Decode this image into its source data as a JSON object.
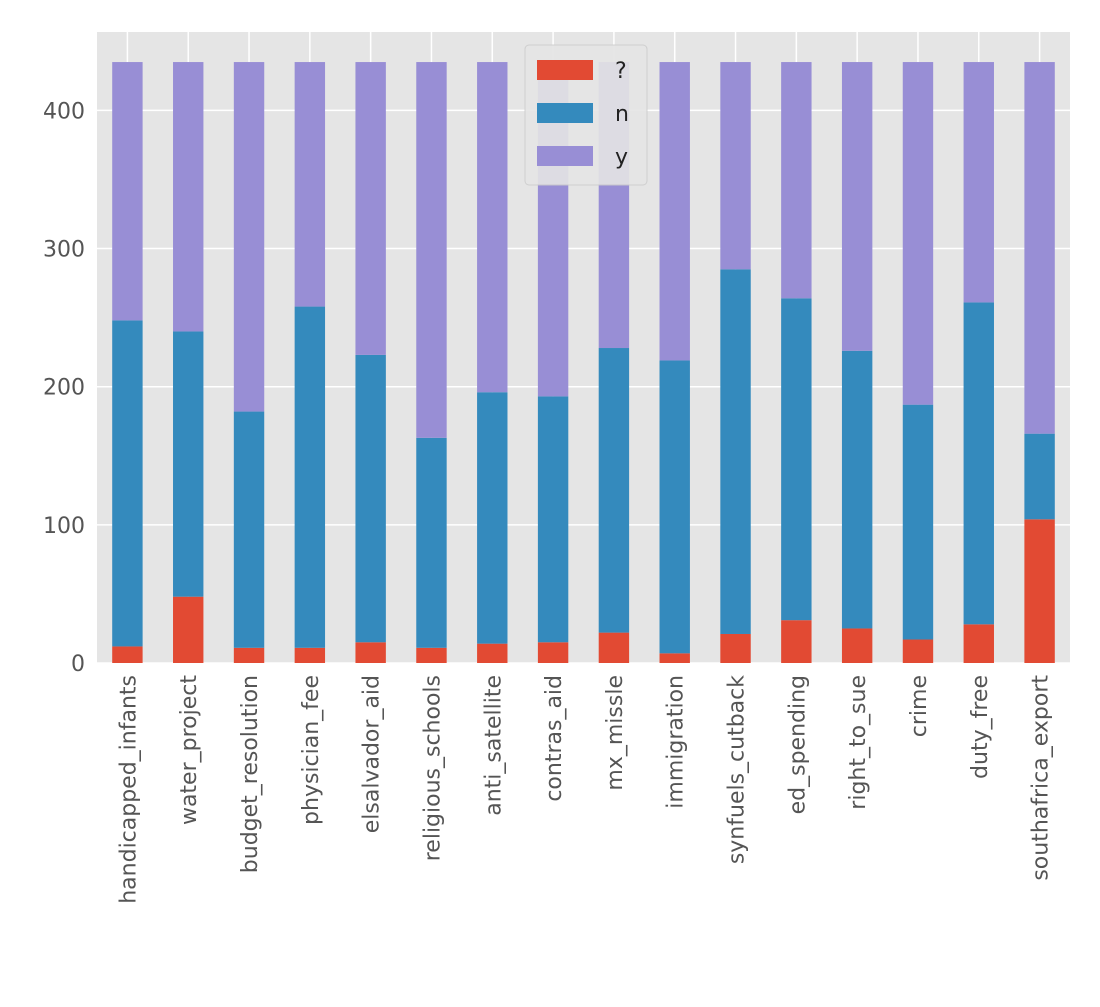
{
  "chart_data": {
    "type": "bar",
    "stacked": true,
    "title": "",
    "xlabel": "",
    "ylabel": "",
    "ylim": [
      0,
      456.75
    ],
    "yticks": [
      0,
      100,
      200,
      300,
      400
    ],
    "grid": true,
    "style": "ggplot",
    "legend_position": "top-center",
    "categories": [
      "handicapped_infants",
      "water_project",
      "budget_resolution",
      "physician_fee",
      "elsalvador_aid",
      "religious_schools",
      "anti_satellite",
      "contras_aid",
      "mx_missle",
      "immigration",
      "synfuels_cutback",
      "ed_spending",
      "right_to_sue",
      "crime",
      "duty_free",
      "southafrica_export"
    ],
    "series": [
      {
        "name": "?",
        "color": "#E24A33",
        "values": [
          12,
          48,
          11,
          11,
          15,
          11,
          14,
          15,
          22,
          7,
          21,
          31,
          25,
          17,
          28,
          104
        ]
      },
      {
        "name": "n",
        "color": "#348ABD",
        "values": [
          236,
          192,
          171,
          247,
          208,
          152,
          182,
          178,
          206,
          212,
          264,
          233,
          201,
          170,
          233,
          62
        ]
      },
      {
        "name": "y",
        "color": "#988ED5",
        "values": [
          187,
          195,
          253,
          177,
          212,
          272,
          239,
          242,
          207,
          216,
          150,
          171,
          209,
          248,
          174,
          269
        ]
      }
    ],
    "background_color": "#E5E5E5",
    "grid_color": "#FFFFFF"
  }
}
